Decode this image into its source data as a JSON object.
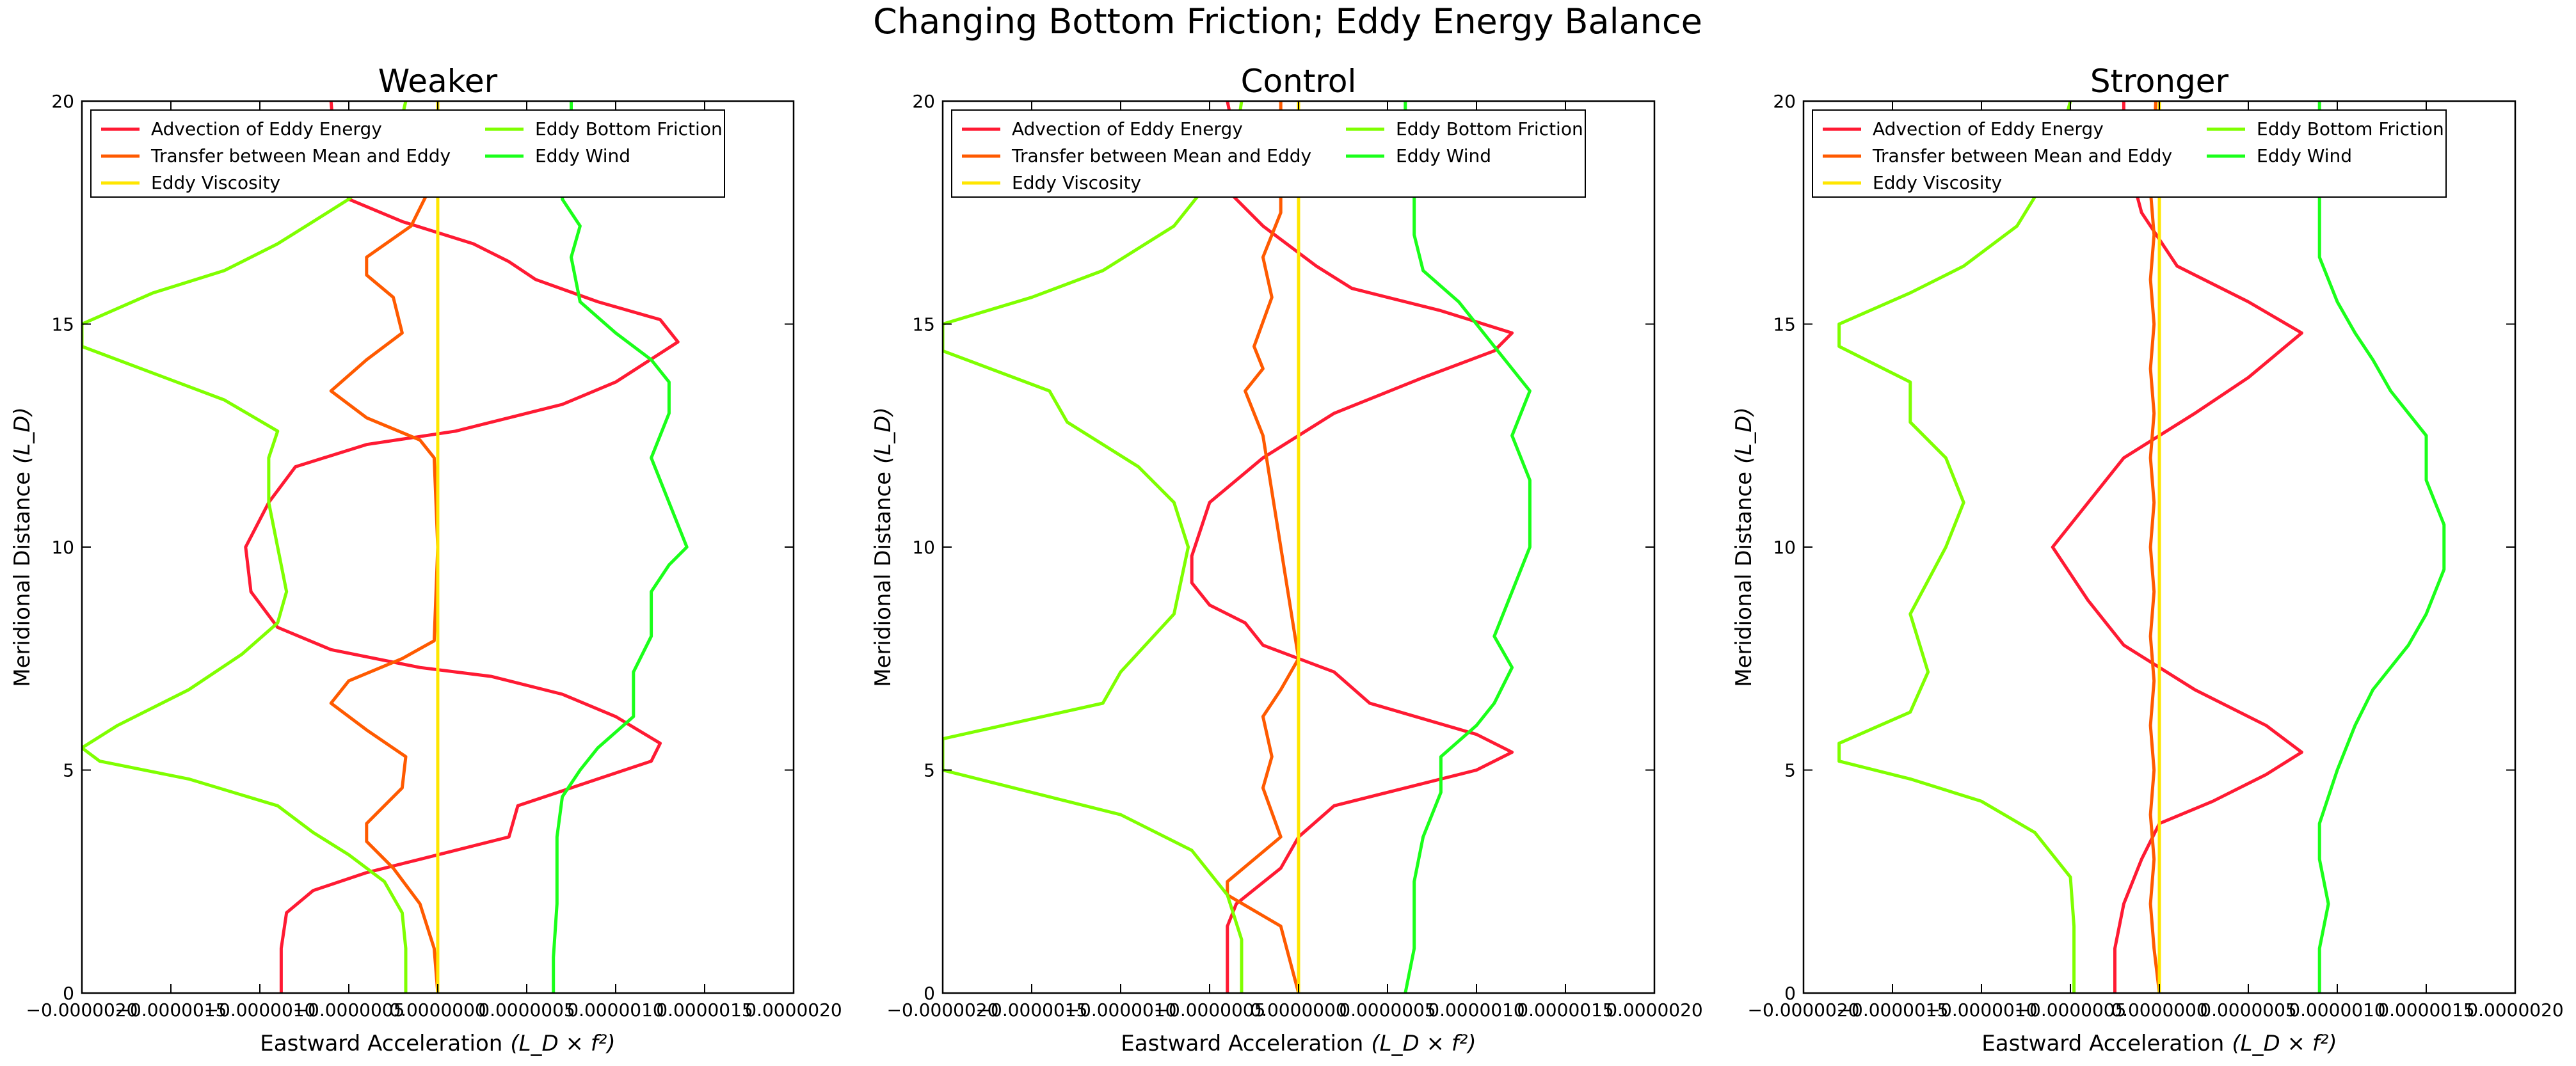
{
  "suptitle": "Changing Bottom Friction; Eddy Energy Balance",
  "colors": {
    "advection": "#ff1a33",
    "transfer": "#ff5a00",
    "viscosity": "#ffe600",
    "bottom_friction": "#7fff00",
    "wind": "#1aff1a"
  },
  "chart_data": [
    {
      "type": "line",
      "title": "Weaker",
      "xlabel": "Eastward Acceleration",
      "xlabel_math": "(L_D × f²)",
      "ylabel": "Meridional Distance",
      "ylabel_math": "(L_D)",
      "xlim": [
        -2e-06,
        2e-06
      ],
      "ylim": [
        0,
        20
      ],
      "xticks": [
        -2e-06,
        -1.5e-06,
        -1e-06,
        -5e-07,
        0,
        5e-07,
        1e-06,
        1.5e-06,
        2e-06
      ],
      "xtick_labels": [
        "−0.0000020",
        "−0.0000015",
        "−0.0000010",
        "−0.0000005",
        "0.0000000",
        "0.0000005",
        "0.0000010",
        "0.0000015",
        "0.0000020"
      ],
      "yticks": [
        0,
        5,
        10,
        15,
        20
      ],
      "ytick_labels": [
        "0",
        "5",
        "10",
        "15",
        "20"
      ],
      "legend": "top-left",
      "grid": false,
      "series": [
        {
          "name": "Advection of Eddy Energy",
          "color_key": "advection",
          "x": [
            -8.8e-07,
            -8.8e-07,
            -8.5e-07,
            -7e-07,
            -4e-07,
            -1e-07,
            4e-07,
            4.5e-07,
            9e-07,
            1.2e-06,
            1.25e-06,
            1e-06,
            7e-07,
            3e-07,
            -1e-07,
            -6e-07,
            -9e-07,
            -1.05e-06,
            -1.08e-06,
            -9.5e-07,
            -8e-07,
            -4e-07,
            1e-07,
            4e-07,
            7e-07,
            1e-06,
            1.35e-06,
            1.25e-06,
            9e-07,
            5.5e-07,
            4e-07,
            2e-07,
            -2e-07,
            -5e-07,
            -5.8e-07,
            -6e-07
          ],
          "y": [
            0,
            1,
            1.8,
            2.3,
            2.7,
            3.0,
            3.5,
            4.2,
            4.8,
            5.2,
            5.6,
            6.2,
            6.7,
            7.1,
            7.3,
            7.7,
            8.2,
            9.0,
            10.0,
            11.0,
            11.8,
            12.3,
            12.6,
            12.9,
            13.2,
            13.7,
            14.6,
            15.1,
            15.5,
            16.0,
            16.4,
            16.8,
            17.3,
            17.8,
            19.0,
            20
          ]
        },
        {
          "name": "Transfer between Mean and Eddy",
          "color_key": "transfer",
          "x": [
            0,
            -2e-08,
            -1e-07,
            -2.5e-07,
            -4e-07,
            -4e-07,
            -2e-07,
            -1.8e-07,
            -4e-07,
            -6e-07,
            -5e-07,
            -2e-07,
            -2e-08,
            0,
            -2e-08,
            -1e-07,
            -4e-07,
            -6e-07,
            -4e-07,
            -2e-07,
            -2.5e-07,
            -4e-07,
            -4e-07,
            -1.5e-07,
            -5e-08,
            0,
            0
          ],
          "y": [
            0,
            1.0,
            2.0,
            2.8,
            3.4,
            3.8,
            4.6,
            5.3,
            5.9,
            6.5,
            7.0,
            7.5,
            7.9,
            10.0,
            12.0,
            12.4,
            12.9,
            13.5,
            14.2,
            14.8,
            15.6,
            16.1,
            16.5,
            17.2,
            18.0,
            19.0,
            20
          ]
        },
        {
          "name": "Eddy Viscosity",
          "color_key": "viscosity",
          "x": [
            0,
            0,
            0,
            0,
            0
          ],
          "y": [
            0,
            5,
            10,
            15,
            20
          ]
        },
        {
          "name": "Eddy Bottom Friction",
          "color_key": "bottom_friction",
          "x": [
            -1.8e-07,
            -1.8e-07,
            -2e-07,
            -3e-07,
            -5e-07,
            -7e-07,
            -9e-07,
            -1.4e-06,
            -1.9e-06,
            -2e-06,
            -1.8e-06,
            -1.4e-06,
            -1.1e-06,
            -9e-07,
            -8.5e-07,
            -9e-07,
            -9.5e-07,
            -9.5e-07,
            -9.5e-07,
            -9e-07,
            -1.2e-06,
            -1.6e-06,
            -2e-06,
            -2e-06,
            -1.6e-06,
            -1.2e-06,
            -9e-07,
            -7e-07,
            -5e-07,
            -3e-07,
            -2.2e-07,
            -1.8e-07
          ],
          "y": [
            0,
            1.0,
            1.8,
            2.5,
            3.1,
            3.6,
            4.2,
            4.8,
            5.2,
            5.5,
            6.0,
            6.8,
            7.6,
            8.3,
            9.0,
            10.0,
            11.0,
            11.6,
            12.0,
            12.6,
            13.3,
            13.9,
            14.5,
            15.0,
            15.7,
            16.2,
            16.8,
            17.3,
            17.8,
            18.5,
            19.3,
            20
          ]
        },
        {
          "name": "Eddy Wind",
          "color_key": "wind",
          "x": [
            6.5e-07,
            6.5e-07,
            6.7e-07,
            6.7e-07,
            7e-07,
            8e-07,
            9e-07,
            1.1e-06,
            1.1e-06,
            1.2e-06,
            1.2e-06,
            1.3e-06,
            1.4e-06,
            1.3e-06,
            1.2e-06,
            1.3e-06,
            1.3e-06,
            1.2e-06,
            1e-06,
            8e-07,
            7.5e-07,
            8e-07,
            7e-07,
            7.5e-07,
            7.5e-07
          ],
          "y": [
            0,
            0.8,
            2.0,
            3.5,
            4.4,
            5.0,
            5.5,
            6.2,
            7.2,
            8.0,
            9.0,
            9.6,
            10.0,
            11.0,
            12.0,
            13.0,
            13.7,
            14.2,
            14.8,
            15.5,
            16.5,
            17.2,
            17.8,
            19.0,
            20
          ]
        }
      ]
    },
    {
      "type": "line",
      "title": "Control",
      "xlabel": "Eastward Acceleration",
      "xlabel_math": "(L_D × f²)",
      "ylabel": "Meridional Distance",
      "ylabel_math": "(L_D)",
      "xlim": [
        -2e-06,
        2e-06
      ],
      "ylim": [
        0,
        20
      ],
      "xticks": [
        -2e-06,
        -1.5e-06,
        -1e-06,
        -5e-07,
        0,
        5e-07,
        1e-06,
        1.5e-06,
        2e-06
      ],
      "xtick_labels": [
        "−0.0000020",
        "−0.0000015",
        "−0.0000010",
        "−0.0000005",
        "0.0000000",
        "0.0000005",
        "0.0000010",
        "0.0000015",
        "0.0000020"
      ],
      "yticks": [
        0,
        5,
        10,
        15,
        20
      ],
      "ytick_labels": [
        "0",
        "5",
        "10",
        "15",
        "20"
      ],
      "legend": "top-left",
      "grid": false,
      "series": [
        {
          "name": "Advection of Eddy Energy",
          "color_key": "advection",
          "x": [
            -4e-07,
            -4e-07,
            -4e-07,
            -3.5e-07,
            -1e-07,
            0,
            2e-07,
            6e-07,
            1e-06,
            1.2e-06,
            1e-06,
            4e-07,
            2e-07,
            -2e-07,
            -3e-07,
            -5e-07,
            -6e-07,
            -6e-07,
            -5e-07,
            -2e-07,
            2e-07,
            7e-07,
            1.1e-06,
            1.2e-06,
            8e-07,
            3e-07,
            1e-07,
            -2e-07,
            -4e-07,
            -3.5e-07,
            -4e-07
          ],
          "y": [
            0,
            0.8,
            1.5,
            2.0,
            2.8,
            3.5,
            4.2,
            4.6,
            5.0,
            5.4,
            5.8,
            6.5,
            7.2,
            7.8,
            8.3,
            8.7,
            9.2,
            9.8,
            11.0,
            12.0,
            13.0,
            13.8,
            14.4,
            14.8,
            15.3,
            15.8,
            16.3,
            17.2,
            18.0,
            19.0,
            20
          ]
        },
        {
          "name": "Transfer between Mean and Eddy",
          "color_key": "transfer",
          "x": [
            0,
            -1e-07,
            -4e-07,
            -4e-07,
            -1e-07,
            -2e-07,
            -1.5e-07,
            -2e-07,
            -1e-07,
            0,
            -1e-07,
            -2e-07,
            -3e-07,
            -2e-07,
            -2.5e-07,
            -1.5e-07,
            -2e-07,
            -1e-07,
            -1e-07
          ],
          "y": [
            0,
            1.5,
            2.2,
            2.5,
            3.5,
            4.6,
            5.3,
            6.2,
            6.8,
            7.5,
            10.0,
            12.5,
            13.5,
            14.0,
            14.5,
            15.6,
            16.5,
            17.5,
            20
          ]
        },
        {
          "name": "Eddy Viscosity",
          "color_key": "viscosity",
          "x": [
            0,
            0,
            0,
            0,
            0
          ],
          "y": [
            0,
            5,
            10,
            15,
            20
          ]
        },
        {
          "name": "Eddy Bottom Friction",
          "color_key": "bottom_friction",
          "x": [
            -3.2e-07,
            -3.2e-07,
            -4e-07,
            -6e-07,
            -1e-06,
            -1.6e-06,
            -2e-06,
            -2e-06,
            -1.1e-06,
            -1e-06,
            -7e-07,
            -6.2e-07,
            -7e-07,
            -9e-07,
            -1.3e-06,
            -1.4e-06,
            -2e-06,
            -2e-06,
            -1.5e-06,
            -1.1e-06,
            -7e-07,
            -5e-07,
            -3.5e-07,
            -3.2e-07
          ],
          "y": [
            0,
            1.2,
            2.2,
            3.2,
            4.0,
            4.6,
            5.0,
            5.7,
            6.5,
            7.2,
            8.5,
            10.0,
            11.0,
            11.8,
            12.8,
            13.5,
            14.4,
            15.0,
            15.6,
            16.2,
            17.2,
            18.2,
            19.2,
            20
          ]
        },
        {
          "name": "Eddy Wind",
          "color_key": "wind",
          "x": [
            6e-07,
            6.5e-07,
            6.5e-07,
            7e-07,
            8e-07,
            8e-07,
            1e-06,
            1.1e-06,
            1.2e-06,
            1.1e-06,
            1.2e-06,
            1.3e-06,
            1.3e-06,
            1.2e-06,
            1.3e-06,
            1.1e-06,
            1e-06,
            9e-07,
            7e-07,
            6.5e-07,
            6.5e-07,
            6e-07,
            6e-07
          ],
          "y": [
            0,
            1.0,
            2.5,
            3.5,
            4.5,
            5.3,
            6.0,
            6.5,
            7.3,
            8.0,
            9.0,
            10.0,
            11.5,
            12.5,
            13.5,
            14.5,
            15.0,
            15.5,
            16.2,
            17.0,
            18.0,
            19.0,
            20
          ]
        }
      ]
    },
    {
      "type": "line",
      "title": "Stronger",
      "xlabel": "Eastward Acceleration",
      "xlabel_math": "(L_D × f²)",
      "ylabel": "Meridional Distance",
      "ylabel_math": "(L_D)",
      "xlim": [
        -2e-06,
        2e-06
      ],
      "ylim": [
        0,
        20
      ],
      "xticks": [
        -2e-06,
        -1.5e-06,
        -1e-06,
        -5e-07,
        0,
        5e-07,
        1e-06,
        1.5e-06,
        2e-06
      ],
      "xtick_labels": [
        "−0.0000020",
        "−0.0000015",
        "−0.0000010",
        "−0.0000005",
        "0.0000000",
        "0.0000005",
        "0.0000010",
        "0.0000015",
        "0.0000020"
      ],
      "yticks": [
        0,
        5,
        10,
        15,
        20
      ],
      "ytick_labels": [
        "0",
        "5",
        "10",
        "15",
        "20"
      ],
      "legend": "top-left",
      "grid": false,
      "series": [
        {
          "name": "Advection of Eddy Energy",
          "color_key": "advection",
          "x": [
            -2.5e-07,
            -2.5e-07,
            -2e-07,
            -1e-07,
            0,
            3e-07,
            6e-07,
            8e-07,
            6e-07,
            2e-07,
            -2e-07,
            -4e-07,
            -6e-07,
            -4e-07,
            -2e-07,
            2e-07,
            5e-07,
            8e-07,
            5e-07,
            1e-07,
            -1e-07,
            -2e-07,
            -2e-07
          ],
          "y": [
            0,
            1.0,
            2.0,
            3.0,
            3.8,
            4.3,
            4.9,
            5.4,
            6.0,
            6.8,
            7.8,
            8.8,
            10.0,
            11.0,
            12.0,
            13.0,
            13.8,
            14.8,
            15.5,
            16.3,
            17.5,
            19.0,
            20
          ]
        },
        {
          "name": "Transfer between Mean and Eddy",
          "color_key": "transfer",
          "x": [
            0,
            -3e-08,
            -5e-08,
            -3e-08,
            -5e-08,
            -3e-08,
            -5e-08,
            -3e-08,
            -5e-08,
            -3e-08,
            -5e-08,
            -3e-08,
            -5e-08,
            -3e-08,
            -5e-08,
            -3e-08,
            -5e-08,
            -3e-08,
            -5e-08,
            -3e-08,
            -2e-08
          ],
          "y": [
            0,
            1,
            2,
            3,
            4,
            5,
            6,
            7,
            8,
            9,
            10,
            11,
            12,
            13,
            14,
            15,
            16,
            17,
            18,
            19,
            20
          ]
        },
        {
          "name": "Eddy Viscosity",
          "color_key": "viscosity",
          "x": [
            0,
            0,
            0,
            0,
            0
          ],
          "y": [
            0,
            5,
            10,
            15,
            20
          ]
        },
        {
          "name": "Eddy Bottom Friction",
          "color_key": "bottom_friction",
          "x": [
            -4.8e-07,
            -4.8e-07,
            -5e-07,
            -7e-07,
            -1e-06,
            -1.4e-06,
            -1.8e-06,
            -1.8e-06,
            -1.4e-06,
            -1.3e-06,
            -1.4e-06,
            -1.2e-06,
            -1.1e-06,
            -1.2e-06,
            -1.4e-06,
            -1.4e-06,
            -1.8e-06,
            -1.8e-06,
            -1.4e-06,
            -1.1e-06,
            -8e-07,
            -6e-07,
            -5e-07
          ],
          "y": [
            0,
            1.5,
            2.6,
            3.6,
            4.3,
            4.8,
            5.2,
            5.6,
            6.3,
            7.2,
            8.5,
            10.0,
            11.0,
            12.0,
            12.8,
            13.7,
            14.5,
            15.0,
            15.7,
            16.3,
            17.2,
            18.5,
            20
          ]
        },
        {
          "name": "Eddy Wind",
          "color_key": "wind",
          "x": [
            9e-07,
            9e-07,
            9.5e-07,
            9e-07,
            9e-07,
            1e-06,
            1.1e-06,
            1.2e-06,
            1.4e-06,
            1.5e-06,
            1.6e-06,
            1.6e-06,
            1.5e-06,
            1.5e-06,
            1.3e-06,
            1.2e-06,
            1.1e-06,
            1e-06,
            9e-07,
            9e-07,
            9e-07,
            9e-07
          ],
          "y": [
            0,
            1.0,
            2.0,
            3.0,
            3.8,
            5.0,
            6.0,
            6.8,
            7.8,
            8.5,
            9.5,
            10.5,
            11.5,
            12.5,
            13.5,
            14.2,
            14.8,
            15.5,
            16.5,
            17.5,
            18.5,
            20
          ]
        }
      ]
    }
  ]
}
